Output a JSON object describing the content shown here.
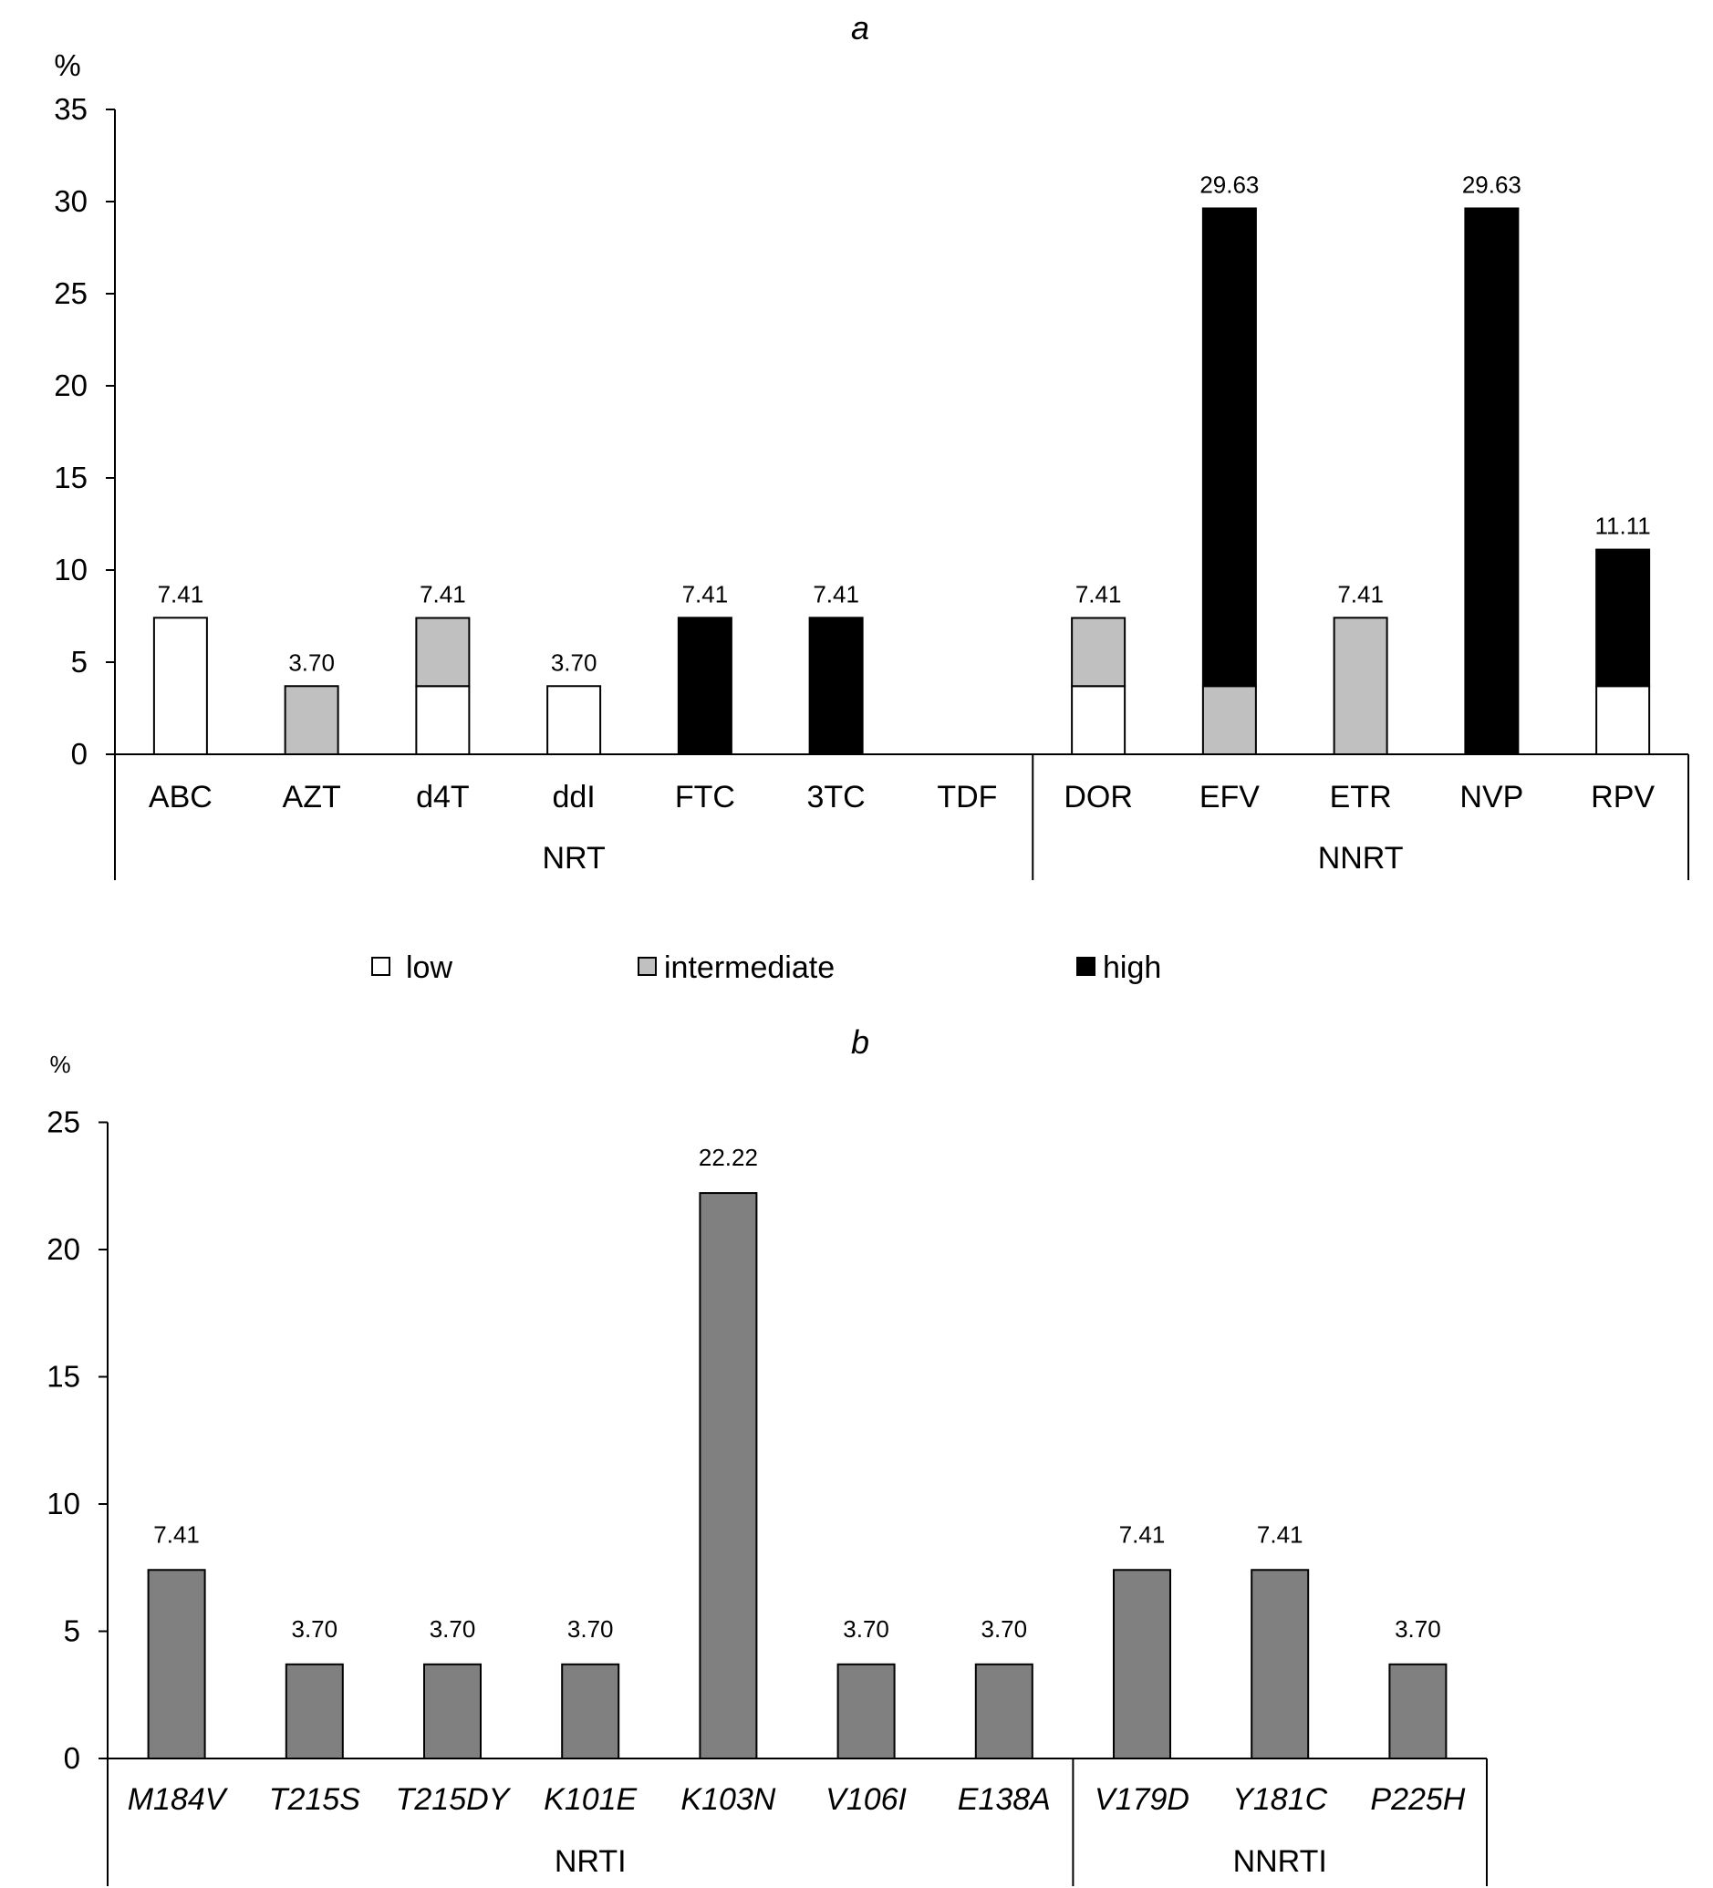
{
  "chart_data": [
    {
      "type": "bar",
      "stacked": true,
      "title": "a",
      "ylabel": "%",
      "ylim": [
        0,
        35
      ],
      "yticks": [
        0,
        5,
        10,
        15,
        20,
        25,
        30,
        35
      ],
      "categories": [
        "ABC",
        "AZT",
        "d4T",
        "ddI",
        "FTC",
        "3TC",
        "TDF",
        "DOR",
        "EFV",
        "ETR",
        "NVP",
        "RPV"
      ],
      "groups": [
        {
          "label": "NRT",
          "start": 0,
          "end": 6
        },
        {
          "label": "NNRT",
          "start": 7,
          "end": 11
        }
      ],
      "series": [
        {
          "name": "low",
          "color": "#ffffff",
          "values": [
            7.41,
            0,
            3.7,
            3.7,
            0,
            0,
            0,
            3.7,
            0,
            0,
            0,
            3.7
          ]
        },
        {
          "name": "intermediate",
          "color": "#c0c0c0",
          "values": [
            0,
            3.7,
            3.7,
            0,
            0,
            0,
            0,
            3.7,
            3.7,
            7.41,
            0,
            0
          ]
        },
        {
          "name": "high",
          "color": "#000000",
          "values": [
            0,
            0,
            0,
            0,
            7.41,
            7.41,
            0,
            0,
            25.93,
            0,
            29.63,
            7.41
          ]
        }
      ],
      "data_labels": [
        "7.41",
        "3.70",
        "7.41",
        "3.70",
        "7.41",
        "7.41",
        "",
        "7.41",
        "29.63",
        "7.41",
        "29.63",
        "11.11"
      ],
      "legend": {
        "placement": "bottom",
        "entries": [
          "low",
          "intermediate",
          "high"
        ]
      },
      "grid": false
    },
    {
      "type": "bar",
      "title": "b",
      "ylabel": "%",
      "ylim": [
        0,
        25
      ],
      "yticks": [
        0,
        5,
        10,
        15,
        20,
        25
      ],
      "categories": [
        "M184V",
        "T215S",
        "T215DY",
        "K101E",
        "K103N",
        "V106I",
        "E138A",
        "V179D",
        "Y181C",
        "P225H"
      ],
      "category_style": "italic",
      "groups": [
        {
          "label": "NRTI",
          "start": 0,
          "end": 6
        },
        {
          "label": "NNRTI",
          "start": 7,
          "end": 9
        }
      ],
      "values": [
        7.41,
        3.7,
        3.7,
        3.7,
        22.22,
        3.7,
        3.7,
        7.41,
        7.41,
        3.7
      ],
      "data_labels": [
        "7.41",
        "3.70",
        "3.70",
        "3.70",
        "22.22",
        "3.70",
        "3.70",
        "7.41",
        "7.41",
        "3.70"
      ],
      "bar_color": "#808080",
      "grid": false
    }
  ]
}
